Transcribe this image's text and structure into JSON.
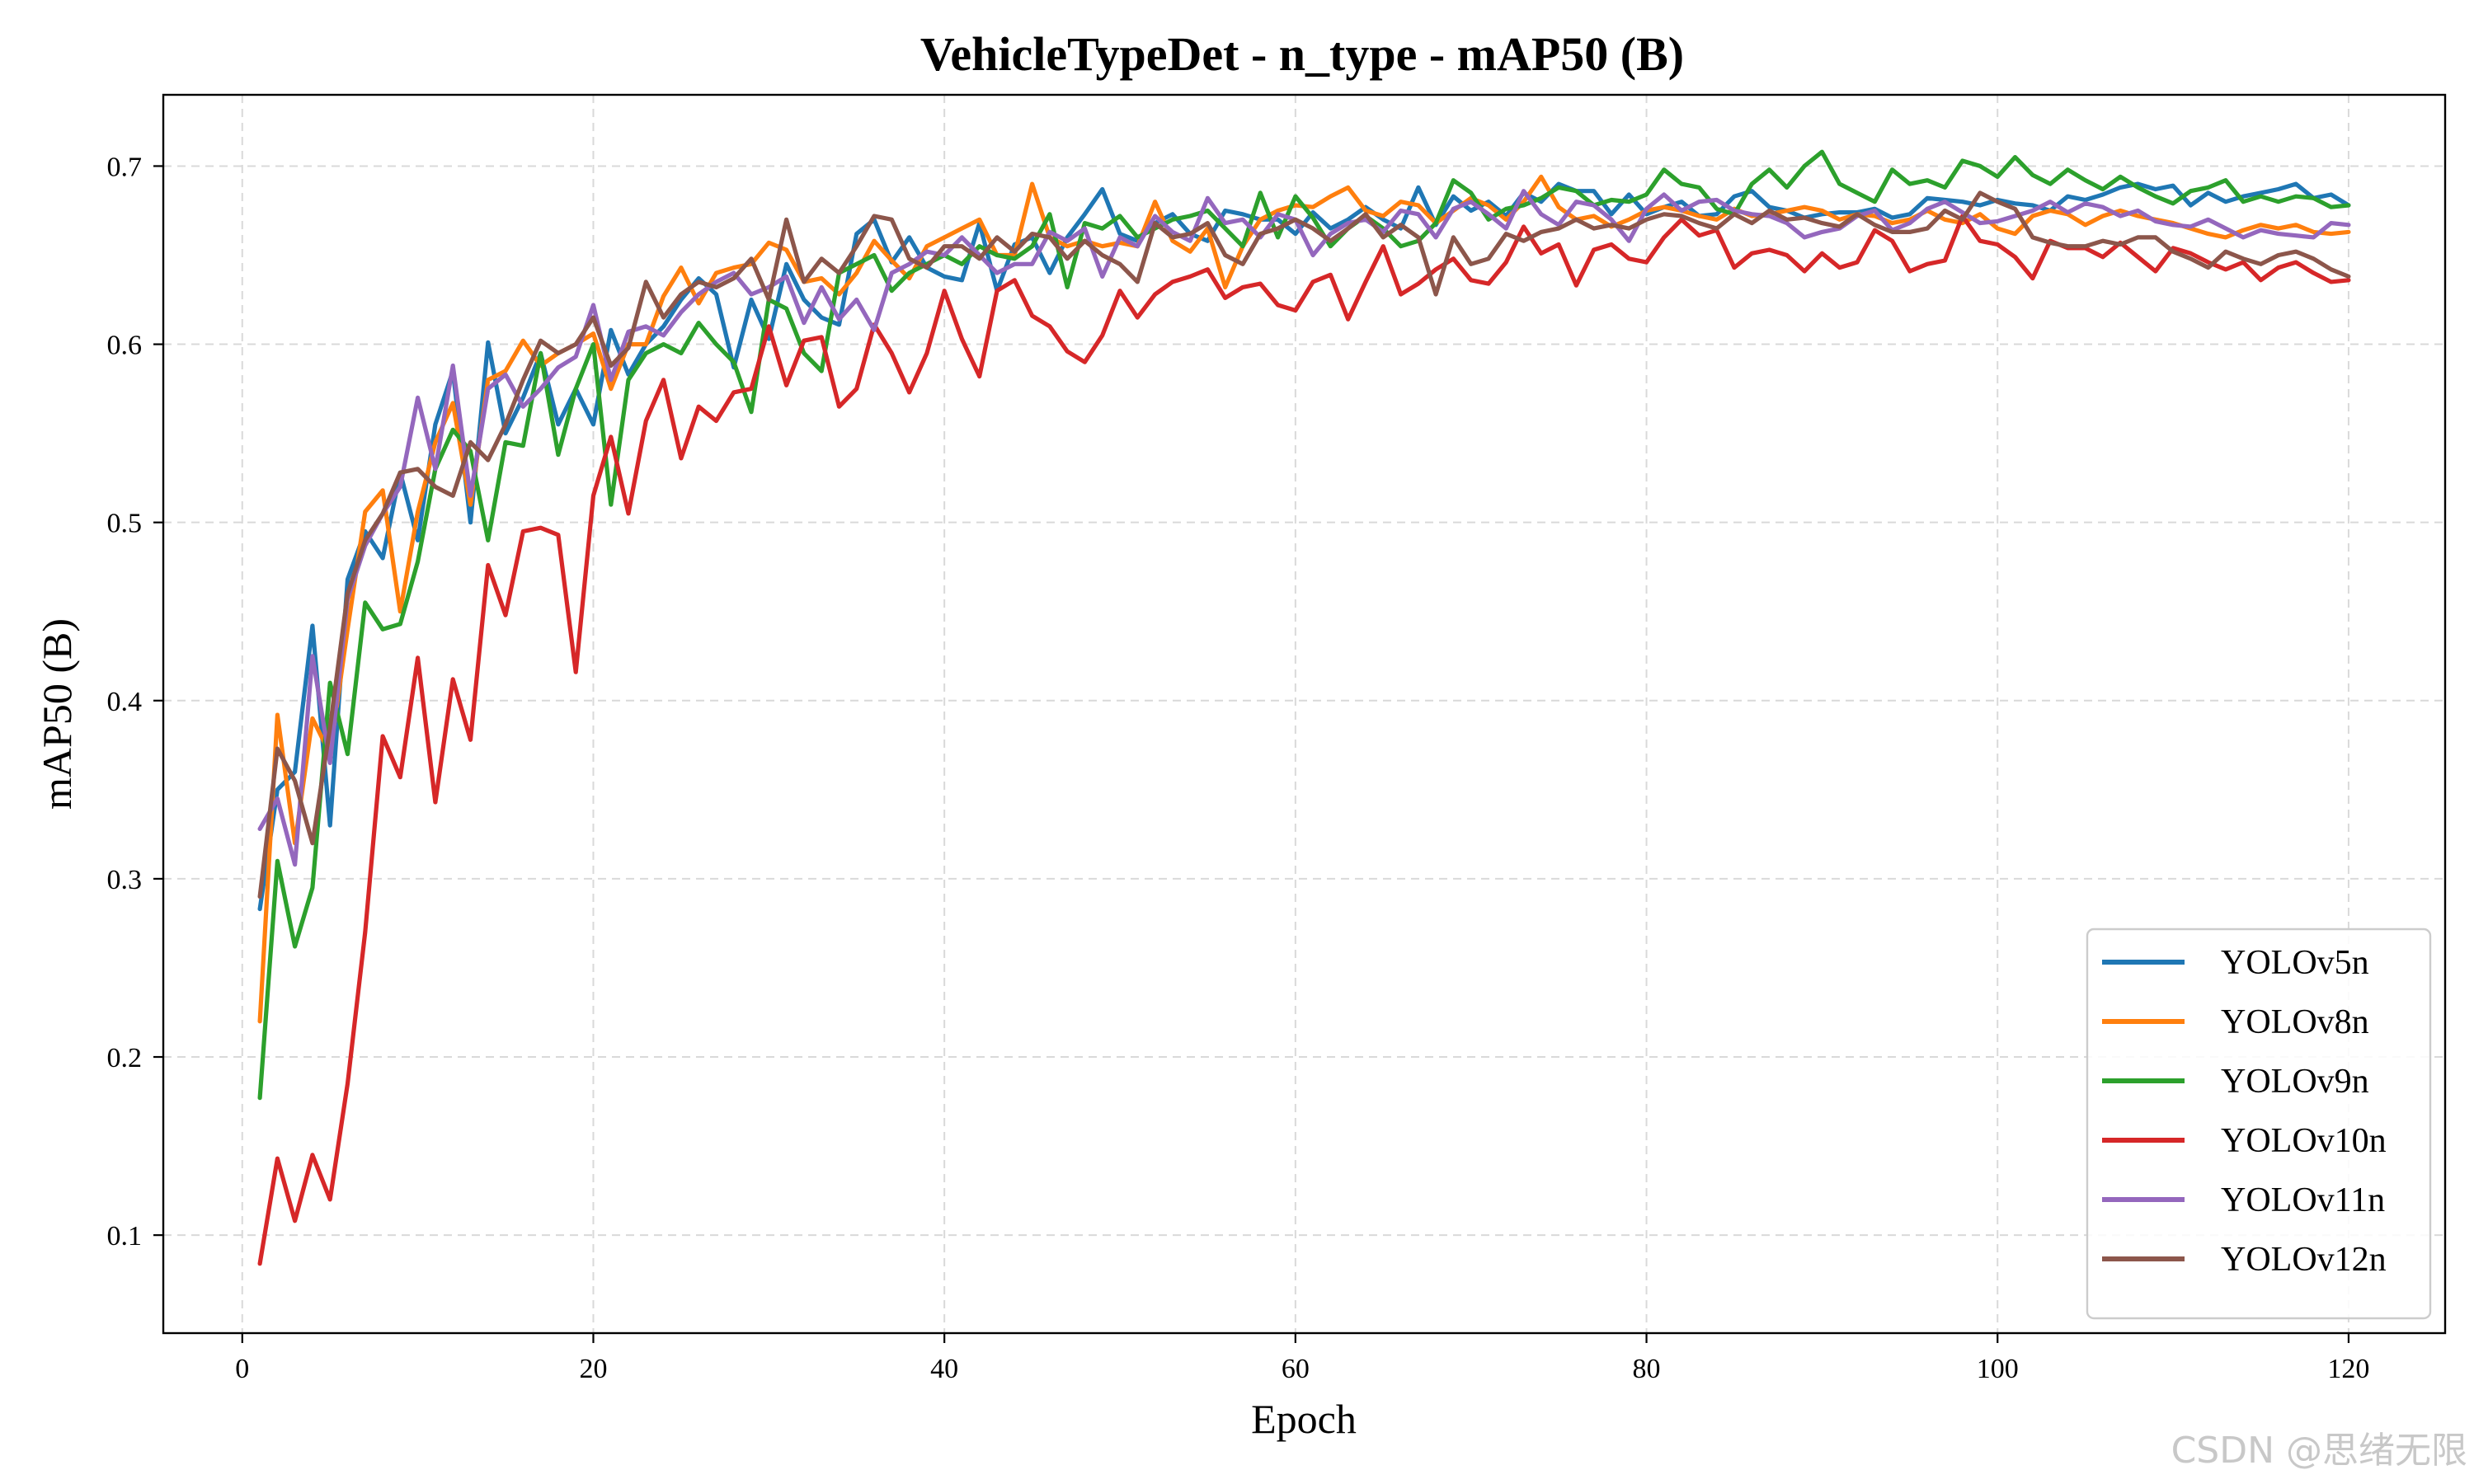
{
  "chart_data": {
    "type": "line",
    "title": "VehicleTypeDet - n_type - mAP50 (B)",
    "xlabel": "Epoch",
    "ylabel": "mAP50 (B)",
    "xlim": [
      -4.5,
      125.5
    ],
    "ylim": [
      0.045,
      0.74
    ],
    "xticks": [
      0,
      20,
      40,
      60,
      80,
      100,
      120
    ],
    "yticks": [
      0.1,
      0.2,
      0.3,
      0.4,
      0.5,
      0.6,
      0.7
    ],
    "xtick_labels": [
      "0",
      "20",
      "40",
      "60",
      "80",
      "100",
      "120"
    ],
    "ytick_labels": [
      "0.1",
      "0.2",
      "0.3",
      "0.4",
      "0.5",
      "0.6",
      "0.7"
    ],
    "grid": true,
    "legend_position": "bottom-right",
    "x": [
      1,
      2,
      3,
      4,
      5,
      6,
      7,
      8,
      9,
      10,
      11,
      12,
      13,
      14,
      15,
      16,
      17,
      18,
      19,
      20,
      21,
      22,
      23,
      24,
      25,
      26,
      27,
      28,
      29,
      30,
      31,
      32,
      33,
      34,
      35,
      36,
      37,
      38,
      39,
      40,
      41,
      42,
      43,
      44,
      45,
      46,
      47,
      48,
      49,
      50,
      51,
      52,
      53,
      54,
      55,
      56,
      57,
      58,
      59,
      60,
      61,
      62,
      63,
      64,
      65,
      66,
      67,
      68,
      69,
      70,
      71,
      72,
      73,
      74,
      75,
      76,
      77,
      78,
      79,
      80,
      81,
      82,
      83,
      84,
      85,
      86,
      87,
      88,
      89,
      90,
      91,
      92,
      93,
      94,
      95,
      96,
      97,
      98,
      99,
      100,
      101,
      102,
      103,
      104,
      105,
      106,
      107,
      108,
      109,
      110,
      111,
      112,
      113,
      114,
      115,
      116,
      117,
      118,
      119,
      120
    ],
    "series": [
      {
        "name": "YOLOv5n",
        "color": "#1f77b4",
        "values": [
          0.283,
          0.35,
          0.36,
          0.442,
          0.33,
          0.468,
          0.495,
          0.48,
          0.528,
          0.49,
          0.555,
          0.585,
          0.5,
          0.601,
          0.55,
          0.57,
          0.595,
          0.555,
          0.575,
          0.555,
          0.608,
          0.583,
          0.6,
          0.61,
          0.625,
          0.637,
          0.628,
          0.587,
          0.625,
          0.603,
          0.645,
          0.625,
          0.615,
          0.611,
          0.662,
          0.67,
          0.646,
          0.66,
          0.643,
          0.638,
          0.636,
          0.668,
          0.63,
          0.656,
          0.66,
          0.64,
          0.66,
          0.673,
          0.687,
          0.662,
          0.658,
          0.668,
          0.673,
          0.662,
          0.658,
          0.675,
          0.673,
          0.67,
          0.67,
          0.662,
          0.674,
          0.665,
          0.67,
          0.677,
          0.67,
          0.665,
          0.688,
          0.667,
          0.683,
          0.675,
          0.68,
          0.672,
          0.685,
          0.68,
          0.69,
          0.686,
          0.686,
          0.673,
          0.684,
          0.673,
          0.677,
          0.68,
          0.672,
          0.673,
          0.683,
          0.686,
          0.677,
          0.675,
          0.671,
          0.673,
          0.674,
          0.674,
          0.676,
          0.671,
          0.673,
          0.682,
          0.681,
          0.68,
          0.678,
          0.681,
          0.679,
          0.678,
          0.675,
          0.683,
          0.681,
          0.684,
          0.688,
          0.69,
          0.687,
          0.689,
          0.678,
          0.685,
          0.68,
          0.683,
          0.685,
          0.687,
          0.69,
          0.682,
          0.684,
          0.678
        ]
      },
      {
        "name": "YOLOv8n",
        "color": "#ff7f0e",
        "values": [
          0.22,
          0.392,
          0.32,
          0.39,
          0.37,
          0.44,
          0.506,
          0.518,
          0.45,
          0.506,
          0.545,
          0.567,
          0.51,
          0.58,
          0.585,
          0.602,
          0.588,
          0.595,
          0.6,
          0.606,
          0.575,
          0.6,
          0.6,
          0.627,
          0.643,
          0.623,
          0.64,
          0.643,
          0.645,
          0.657,
          0.653,
          0.635,
          0.637,
          0.628,
          0.64,
          0.658,
          0.647,
          0.637,
          0.655,
          0.66,
          0.665,
          0.67,
          0.65,
          0.65,
          0.69,
          0.66,
          0.655,
          0.658,
          0.655,
          0.657,
          0.655,
          0.68,
          0.658,
          0.652,
          0.665,
          0.632,
          0.655,
          0.67,
          0.675,
          0.678,
          0.677,
          0.683,
          0.688,
          0.675,
          0.672,
          0.68,
          0.678,
          0.668,
          0.675,
          0.682,
          0.678,
          0.67,
          0.68,
          0.694,
          0.677,
          0.67,
          0.672,
          0.666,
          0.67,
          0.675,
          0.677,
          0.675,
          0.672,
          0.67,
          0.676,
          0.672,
          0.673,
          0.675,
          0.677,
          0.675,
          0.67,
          0.673,
          0.672,
          0.668,
          0.67,
          0.675,
          0.67,
          0.668,
          0.673,
          0.665,
          0.662,
          0.672,
          0.675,
          0.673,
          0.667,
          0.672,
          0.675,
          0.672,
          0.67,
          0.668,
          0.665,
          0.662,
          0.66,
          0.664,
          0.667,
          0.665,
          0.667,
          0.663,
          0.662,
          0.663
        ]
      },
      {
        "name": "YOLOv9n",
        "color": "#2ca02c",
        "values": [
          0.177,
          0.31,
          0.262,
          0.295,
          0.41,
          0.37,
          0.455,
          0.44,
          0.443,
          0.478,
          0.53,
          0.552,
          0.54,
          0.49,
          0.545,
          0.543,
          0.595,
          0.538,
          0.575,
          0.6,
          0.51,
          0.58,
          0.595,
          0.6,
          0.595,
          0.612,
          0.6,
          0.59,
          0.562,
          0.625,
          0.62,
          0.595,
          0.585,
          0.64,
          0.645,
          0.65,
          0.63,
          0.64,
          0.645,
          0.65,
          0.645,
          0.655,
          0.65,
          0.648,
          0.655,
          0.673,
          0.632,
          0.668,
          0.665,
          0.672,
          0.66,
          0.665,
          0.67,
          0.672,
          0.675,
          0.665,
          0.655,
          0.685,
          0.66,
          0.683,
          0.671,
          0.655,
          0.665,
          0.672,
          0.665,
          0.655,
          0.658,
          0.668,
          0.692,
          0.685,
          0.67,
          0.676,
          0.678,
          0.682,
          0.688,
          0.686,
          0.678,
          0.681,
          0.68,
          0.684,
          0.698,
          0.69,
          0.688,
          0.676,
          0.673,
          0.69,
          0.698,
          0.688,
          0.7,
          0.708,
          0.69,
          0.685,
          0.68,
          0.698,
          0.69,
          0.692,
          0.688,
          0.703,
          0.7,
          0.694,
          0.705,
          0.695,
          0.69,
          0.698,
          0.692,
          0.687,
          0.694,
          0.688,
          0.683,
          0.679,
          0.686,
          0.688,
          0.692,
          0.68,
          0.683,
          0.68,
          0.683,
          0.682,
          0.677,
          0.678
        ]
      },
      {
        "name": "YOLOv10n",
        "color": "#d62728",
        "values": [
          0.084,
          0.143,
          0.108,
          0.145,
          0.12,
          0.185,
          0.27,
          0.38,
          0.357,
          0.424,
          0.343,
          0.412,
          0.378,
          0.476,
          0.448,
          0.495,
          0.497,
          0.493,
          0.416,
          0.515,
          0.548,
          0.505,
          0.557,
          0.58,
          0.536,
          0.565,
          0.557,
          0.573,
          0.575,
          0.61,
          0.577,
          0.602,
          0.604,
          0.565,
          0.575,
          0.611,
          0.595,
          0.573,
          0.595,
          0.63,
          0.603,
          0.582,
          0.63,
          0.636,
          0.616,
          0.61,
          0.596,
          0.59,
          0.605,
          0.63,
          0.615,
          0.628,
          0.635,
          0.638,
          0.642,
          0.626,
          0.632,
          0.634,
          0.622,
          0.619,
          0.635,
          0.639,
          0.614,
          0.635,
          0.655,
          0.628,
          0.634,
          0.642,
          0.648,
          0.636,
          0.634,
          0.646,
          0.666,
          0.651,
          0.656,
          0.633,
          0.653,
          0.656,
          0.648,
          0.646,
          0.66,
          0.67,
          0.661,
          0.664,
          0.643,
          0.651,
          0.653,
          0.65,
          0.641,
          0.651,
          0.643,
          0.646,
          0.664,
          0.658,
          0.641,
          0.645,
          0.647,
          0.672,
          0.658,
          0.656,
          0.649,
          0.637,
          0.658,
          0.654,
          0.654,
          0.649,
          0.657,
          0.649,
          0.641,
          0.654,
          0.651,
          0.646,
          0.642,
          0.646,
          0.636,
          0.643,
          0.646,
          0.64,
          0.635,
          0.636
        ]
      },
      {
        "name": "YOLOv11n",
        "color": "#9467bd",
        "values": [
          0.328,
          0.345,
          0.308,
          0.425,
          0.365,
          0.457,
          0.487,
          0.505,
          0.52,
          0.57,
          0.53,
          0.588,
          0.515,
          0.575,
          0.583,
          0.565,
          0.575,
          0.587,
          0.593,
          0.622,
          0.58,
          0.607,
          0.61,
          0.605,
          0.618,
          0.628,
          0.635,
          0.64,
          0.628,
          0.632,
          0.638,
          0.612,
          0.632,
          0.614,
          0.625,
          0.608,
          0.64,
          0.645,
          0.652,
          0.65,
          0.66,
          0.65,
          0.64,
          0.645,
          0.645,
          0.663,
          0.658,
          0.665,
          0.638,
          0.66,
          0.655,
          0.672,
          0.663,
          0.658,
          0.682,
          0.668,
          0.67,
          0.66,
          0.673,
          0.67,
          0.65,
          0.662,
          0.668,
          0.67,
          0.663,
          0.675,
          0.673,
          0.66,
          0.676,
          0.68,
          0.673,
          0.665,
          0.686,
          0.673,
          0.667,
          0.68,
          0.678,
          0.67,
          0.658,
          0.676,
          0.684,
          0.675,
          0.68,
          0.681,
          0.675,
          0.673,
          0.672,
          0.668,
          0.66,
          0.663,
          0.665,
          0.672,
          0.675,
          0.664,
          0.668,
          0.676,
          0.68,
          0.674,
          0.668,
          0.669,
          0.672,
          0.675,
          0.68,
          0.674,
          0.679,
          0.677,
          0.672,
          0.675,
          0.669,
          0.667,
          0.666,
          0.67,
          0.665,
          0.66,
          0.664,
          0.662,
          0.661,
          0.66,
          0.668,
          0.667
        ]
      },
      {
        "name": "YOLOv12n",
        "color": "#8c564b",
        "values": [
          0.29,
          0.373,
          0.355,
          0.32,
          0.385,
          0.46,
          0.49,
          0.505,
          0.528,
          0.53,
          0.52,
          0.515,
          0.545,
          0.535,
          0.555,
          0.58,
          0.602,
          0.595,
          0.6,
          0.615,
          0.588,
          0.598,
          0.635,
          0.615,
          0.628,
          0.635,
          0.632,
          0.637,
          0.648,
          0.625,
          0.67,
          0.635,
          0.648,
          0.64,
          0.655,
          0.672,
          0.67,
          0.648,
          0.643,
          0.655,
          0.655,
          0.648,
          0.66,
          0.652,
          0.662,
          0.66,
          0.648,
          0.658,
          0.65,
          0.645,
          0.635,
          0.668,
          0.66,
          0.662,
          0.668,
          0.65,
          0.645,
          0.662,
          0.665,
          0.67,
          0.665,
          0.658,
          0.665,
          0.673,
          0.66,
          0.667,
          0.66,
          0.628,
          0.66,
          0.645,
          0.648,
          0.662,
          0.658,
          0.663,
          0.665,
          0.67,
          0.665,
          0.667,
          0.665,
          0.67,
          0.673,
          0.672,
          0.668,
          0.665,
          0.673,
          0.668,
          0.675,
          0.67,
          0.671,
          0.668,
          0.666,
          0.673,
          0.667,
          0.663,
          0.663,
          0.665,
          0.675,
          0.67,
          0.685,
          0.68,
          0.676,
          0.66,
          0.657,
          0.655,
          0.655,
          0.658,
          0.656,
          0.66,
          0.66,
          0.652,
          0.648,
          0.643,
          0.652,
          0.648,
          0.645,
          0.65,
          0.652,
          0.648,
          0.642,
          0.638
        ]
      }
    ]
  },
  "watermark": "CSDN @思绪无限"
}
